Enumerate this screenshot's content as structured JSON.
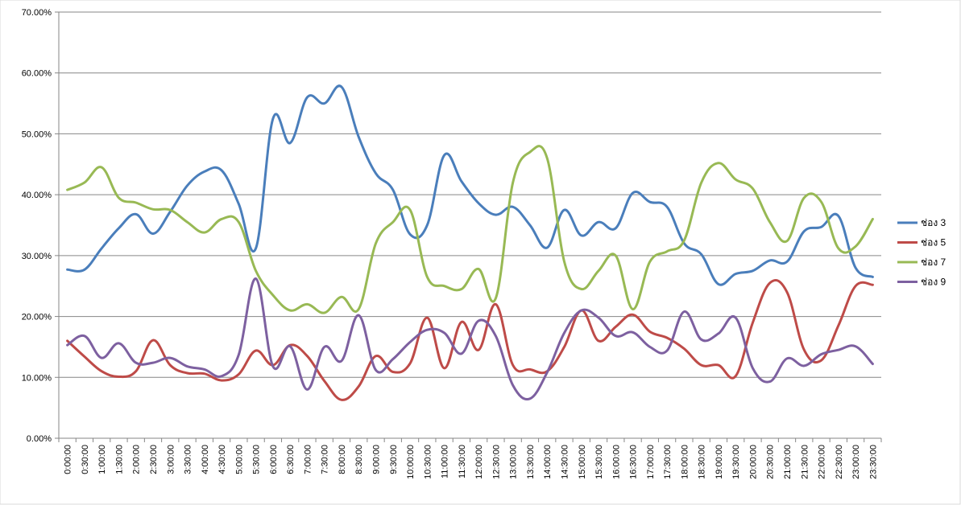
{
  "chart_data": {
    "type": "line",
    "ylim": [
      0,
      70
    ],
    "y_ticks": [
      "0.00%",
      "10.00%",
      "20.00%",
      "30.00%",
      "40.00%",
      "50.00%",
      "60.00%",
      "70.00%"
    ],
    "grid": true,
    "legend_position": "right",
    "categories": [
      "0:00:00",
      "0:30:00",
      "1:00:00",
      "1:30:00",
      "2:00:00",
      "2:30:00",
      "3:00:00",
      "3:30:00",
      "4:00:00",
      "4:30:00",
      "5:00:00",
      "5:30:00",
      "6:00:00",
      "6:30:00",
      "7:00:00",
      "7:30:00",
      "8:00:00",
      "8:30:00",
      "9:00:00",
      "9:30:00",
      "10:00:00",
      "10:30:00",
      "11:00:00",
      "11:30:00",
      "12:00:00",
      "12:30:00",
      "13:00:00",
      "13:30:00",
      "14:00:00",
      "14:30:00",
      "15:00:00",
      "15:30:00",
      "16:00:00",
      "16:30:00",
      "17:00:00",
      "17:30:00",
      "18:00:00",
      "18:30:00",
      "19:00:00",
      "19:30:00",
      "20:00:00",
      "20:30:00",
      "21:00:00",
      "21:30:00",
      "22:00:00",
      "22:30:00",
      "23:00:00",
      "23:30:00"
    ],
    "series": [
      {
        "name": "ช่อง 3",
        "color": "#4A7EBB",
        "values": [
          27.7,
          27.7,
          31.2,
          34.5,
          36.8,
          33.6,
          37.2,
          41.5,
          43.8,
          44.0,
          38.5,
          31.2,
          52.5,
          48.5,
          56.0,
          55.0,
          57.7,
          49.5,
          43.5,
          40.8,
          33.5,
          35.0,
          46.5,
          42.2,
          38.6,
          36.7,
          38.0,
          35.0,
          31.3,
          37.5,
          33.3,
          35.5,
          34.5,
          40.3,
          38.8,
          38.0,
          32.0,
          30.2,
          25.3,
          27.0,
          27.5,
          29.2,
          29.0,
          34.0,
          34.7,
          36.5,
          28.0,
          26.5
        ]
      },
      {
        "name": "ช่อง 5",
        "color": "#BE4B48",
        "values": [
          16.0,
          13.4,
          11.0,
          10.1,
          11.0,
          16.1,
          12.0,
          10.7,
          10.6,
          9.5,
          10.5,
          14.4,
          12.0,
          15.3,
          13.5,
          9.4,
          6.3,
          8.5,
          13.5,
          10.9,
          12.3,
          19.8,
          11.5,
          19.1,
          14.5,
          22.0,
          12.0,
          11.3,
          11.0,
          15.0,
          21.0,
          16.0,
          18.3,
          20.3,
          17.5,
          16.5,
          14.7,
          12.0,
          12.0,
          10.2,
          19.0,
          25.5,
          24.0,
          14.5,
          12.8,
          18.5,
          25.0,
          25.2
        ]
      },
      {
        "name": "ช่อง 7",
        "color": "#98B954",
        "values": [
          40.8,
          42.0,
          44.5,
          39.5,
          38.7,
          37.6,
          37.5,
          35.5,
          33.8,
          36.0,
          35.5,
          27.5,
          23.5,
          21.0,
          22.0,
          20.6,
          23.2,
          21.2,
          32.0,
          35.5,
          37.5,
          26.5,
          25.0,
          24.5,
          27.8,
          23.0,
          42.0,
          47.0,
          46.0,
          29.0,
          24.5,
          27.5,
          30.0,
          21.2,
          29.0,
          30.7,
          32.5,
          42.0,
          45.2,
          42.5,
          41.0,
          35.5,
          32.4,
          39.5,
          38.8,
          31.2,
          31.5,
          36.0
        ]
      },
      {
        "name": "ช่อง 9",
        "color": "#7D60A0",
        "values": [
          15.3,
          16.8,
          13.2,
          15.6,
          12.4,
          12.4,
          13.2,
          11.8,
          11.3,
          10.2,
          13.7,
          26.2,
          11.8,
          15.1,
          8.0,
          15.0,
          12.7,
          20.2,
          11.2,
          13.0,
          15.8,
          17.8,
          17.3,
          13.9,
          19.3,
          16.8,
          8.7,
          6.5,
          10.8,
          17.3,
          21.0,
          19.8,
          16.8,
          17.4,
          15.0,
          14.4,
          20.8,
          16.2,
          17.2,
          19.8,
          11.5,
          9.3,
          13.1,
          11.9,
          13.8,
          14.5,
          15.1,
          12.2
        ]
      }
    ]
  }
}
